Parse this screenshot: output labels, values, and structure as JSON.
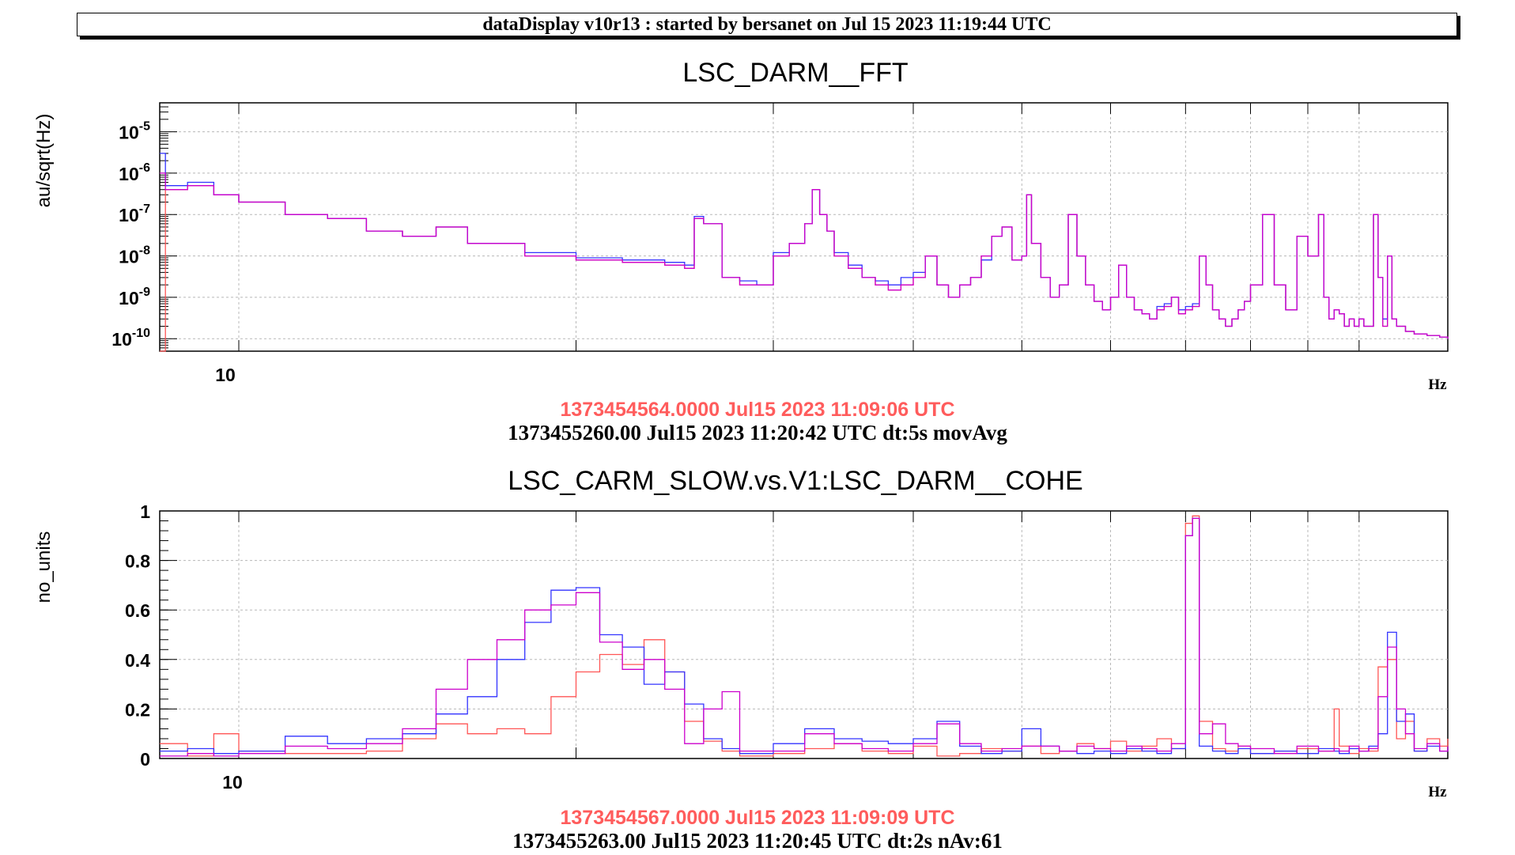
{
  "header": {
    "title": "dataDisplay v10r13 : started by bersanet on Jul 15 2023 11:19:44 UTC"
  },
  "colors": {
    "red": "#ff5555",
    "blue": "#3333ff",
    "magenta": "#cc00cc",
    "timestamp_red": "#ff5c5c",
    "grid": "#b8b8b8"
  },
  "chart_data": [
    {
      "type": "line",
      "title": "LSC_DARM__FFT",
      "ylabel": "au/sqrt(Hz)",
      "xlabel": "Hz",
      "x_scale": "log",
      "y_scale": "log",
      "xlim": [
        8.5,
        120
      ],
      "ylim": [
        5e-11,
        5e-05
      ],
      "x_tick_labels": [
        "10"
      ],
      "y_tick_labels": [
        {
          "base": "10",
          "exp": "-5"
        },
        {
          "base": "10",
          "exp": "-6"
        },
        {
          "base": "10",
          "exp": "-7"
        },
        {
          "base": "10",
          "exp": "-8"
        },
        {
          "base": "10",
          "exp": "-9"
        },
        {
          "base": "10",
          "exp": "-10"
        }
      ],
      "grid": true,
      "timestamps": [
        "1373454564.0000 Jul15 2023 11:09:06 UTC",
        "1373455260.00 Jul15 2023 11:20:42 UTC dt:5s movAvg"
      ],
      "series": [
        {
          "color": "#ff5555",
          "x": [
            8.5,
            8.6,
            9,
            9.5,
            10,
            11,
            12,
            13,
            14,
            15,
            16,
            18,
            20,
            22,
            24,
            25,
            25.5,
            26,
            27,
            28,
            29,
            30,
            31,
            32,
            32.5,
            33,
            33.5,
            34,
            35,
            36,
            37,
            38,
            39,
            40,
            41,
            42,
            43,
            44,
            45,
            46,
            47,
            48,
            49,
            50,
            50.5,
            51,
            52,
            53,
            54,
            55,
            56,
            57,
            58,
            59,
            60,
            61,
            62,
            63,
            64,
            65,
            66,
            67,
            68,
            69,
            70,
            71,
            72,
            73,
            74,
            75,
            76,
            77,
            78,
            79,
            80,
            82,
            84,
            86,
            88,
            90,
            92,
            93,
            94,
            95,
            96,
            97,
            98,
            99,
            100,
            101,
            102,
            103,
            104,
            105,
            106,
            107,
            108,
            110,
            112,
            115,
            118,
            120
          ],
          "y": [
            5e-11,
            4e-07,
            5e-07,
            3e-07,
            2e-07,
            1e-07,
            8e-08,
            4e-08,
            3e-08,
            5e-08,
            2e-08,
            1e-08,
            8e-09,
            7e-09,
            6e-09,
            5e-09,
            8e-08,
            6e-08,
            3e-09,
            2e-09,
            2e-09,
            1e-08,
            2e-08,
            6e-08,
            4e-07,
            1e-07,
            4e-08,
            1e-08,
            5e-09,
            3e-09,
            2e-09,
            1.5e-09,
            2e-09,
            3e-09,
            1e-08,
            2e-09,
            1e-09,
            2e-09,
            3e-09,
            1e-08,
            3e-08,
            5e-08,
            8e-09,
            1e-08,
            3e-07,
            2e-08,
            3e-09,
            1e-09,
            2e-09,
            1e-07,
            1e-08,
            2e-09,
            8e-10,
            5e-10,
            1e-09,
            6e-09,
            1e-09,
            5e-10,
            4e-10,
            3e-10,
            5e-10,
            6e-10,
            1e-09,
            4e-10,
            5e-10,
            6e-10,
            1e-08,
            2e-09,
            5e-10,
            3e-10,
            2e-10,
            3e-10,
            5e-10,
            8e-10,
            2e-09,
            1e-07,
            2e-09,
            5e-10,
            3e-08,
            1e-08,
            1e-07,
            1e-09,
            3e-10,
            5e-10,
            4e-10,
            2e-10,
            3e-10,
            2e-10,
            3e-10,
            2e-10,
            2e-10,
            1e-07,
            3e-09,
            2e-10,
            1e-08,
            3e-10,
            2e-10,
            1.5e-10,
            1.3e-10,
            1.2e-10,
            1.1e-10,
            1e-10
          ]
        },
        {
          "color": "#3333ff",
          "x": [
            8.5,
            8.6,
            9,
            9.5,
            10,
            11,
            12,
            13,
            14,
            15,
            16,
            18,
            20,
            22,
            24,
            25,
            25.5,
            26,
            27,
            28,
            29,
            30,
            31,
            32,
            32.5,
            33,
            33.5,
            34,
            35,
            36,
            37,
            38,
            39,
            40,
            41,
            42,
            43,
            44,
            45,
            46,
            47,
            48,
            49,
            50,
            50.5,
            51,
            52,
            53,
            54,
            55,
            56,
            57,
            58,
            59,
            60,
            61,
            62,
            63,
            64,
            65,
            66,
            67,
            68,
            69,
            70,
            71,
            72,
            73,
            74,
            75,
            76,
            77,
            78,
            79,
            80,
            82,
            84,
            86,
            88,
            90,
            92,
            93,
            94,
            95,
            96,
            97,
            98,
            99,
            100,
            101,
            102,
            103,
            104,
            105,
            106,
            107,
            108,
            110,
            112,
            115,
            118,
            120
          ],
          "y": [
            3e-06,
            5e-07,
            6e-07,
            3e-07,
            2e-07,
            1e-07,
            8e-08,
            4e-08,
            3e-08,
            5e-08,
            2e-08,
            1.2e-08,
            9e-09,
            8e-09,
            7e-09,
            6e-09,
            9e-08,
            6e-08,
            3e-09,
            2.5e-09,
            2e-09,
            1.2e-08,
            2e-08,
            6e-08,
            4e-07,
            1e-07,
            4e-08,
            1.2e-08,
            6e-09,
            3e-09,
            2.5e-09,
            2e-09,
            3e-09,
            4e-09,
            1e-08,
            2e-09,
            1e-09,
            2e-09,
            3e-09,
            8e-09,
            3e-08,
            5e-08,
            8e-09,
            1e-08,
            3e-07,
            2e-08,
            3e-09,
            1e-09,
            2e-09,
            1e-07,
            1e-08,
            2e-09,
            8e-10,
            5e-10,
            1e-09,
            6e-09,
            1e-09,
            5e-10,
            4e-10,
            3e-10,
            6e-10,
            7e-10,
            1e-09,
            5e-10,
            6e-10,
            7e-10,
            1e-08,
            2e-09,
            5e-10,
            3e-10,
            2e-10,
            3e-10,
            5e-10,
            8e-10,
            2e-09,
            1e-07,
            2e-09,
            5e-10,
            3e-08,
            1e-08,
            1e-07,
            1e-09,
            3e-10,
            5e-10,
            4e-10,
            2e-10,
            3e-10,
            2e-10,
            3e-10,
            2e-10,
            2e-10,
            1e-07,
            3e-09,
            3e-10,
            1e-08,
            3e-10,
            2e-10,
            1.5e-10,
            1.3e-10,
            1.2e-10,
            1.1e-10,
            1e-10
          ]
        },
        {
          "color": "#cc00cc",
          "x": [
            8.5,
            8.6,
            9,
            9.5,
            10,
            11,
            12,
            13,
            14,
            15,
            16,
            18,
            20,
            22,
            24,
            25,
            25.5,
            26,
            27,
            28,
            29,
            30,
            31,
            32,
            32.5,
            33,
            33.5,
            34,
            35,
            36,
            37,
            38,
            39,
            40,
            41,
            42,
            43,
            44,
            45,
            46,
            47,
            48,
            49,
            50,
            50.5,
            51,
            52,
            53,
            54,
            55,
            56,
            57,
            58,
            59,
            60,
            61,
            62,
            63,
            64,
            65,
            66,
            67,
            68,
            69,
            70,
            71,
            72,
            73,
            74,
            75,
            76,
            77,
            78,
            79,
            80,
            82,
            84,
            86,
            88,
            90,
            92,
            93,
            94,
            95,
            96,
            97,
            98,
            99,
            100,
            101,
            102,
            103,
            104,
            105,
            106,
            107,
            108,
            110,
            112,
            115,
            118,
            120
          ],
          "y": [
            1e-06,
            4e-07,
            5e-07,
            3e-07,
            2e-07,
            1e-07,
            8e-08,
            4e-08,
            3e-08,
            5e-08,
            2e-08,
            1e-08,
            8e-09,
            7e-09,
            6e-09,
            5e-09,
            8e-08,
            6e-08,
            3e-09,
            2e-09,
            2e-09,
            1e-08,
            2e-08,
            6e-08,
            4e-07,
            1e-07,
            4e-08,
            1e-08,
            5e-09,
            3e-09,
            2e-09,
            1.5e-09,
            2e-09,
            3e-09,
            1e-08,
            2e-09,
            1e-09,
            2e-09,
            3e-09,
            1e-08,
            3e-08,
            5e-08,
            8e-09,
            1e-08,
            3e-07,
            2e-08,
            3e-09,
            1e-09,
            2e-09,
            1e-07,
            1e-08,
            2e-09,
            8e-10,
            5e-10,
            1e-09,
            6e-09,
            1e-09,
            5e-10,
            4e-10,
            3e-10,
            5e-10,
            6e-10,
            1e-09,
            4e-10,
            5e-10,
            6e-10,
            1e-08,
            2e-09,
            5e-10,
            3e-10,
            2e-10,
            3e-10,
            5e-10,
            8e-10,
            2e-09,
            1e-07,
            2e-09,
            5e-10,
            3e-08,
            1e-08,
            1e-07,
            1e-09,
            3e-10,
            5e-10,
            4e-10,
            2e-10,
            3e-10,
            2e-10,
            3e-10,
            2e-10,
            2e-10,
            1e-07,
            3e-09,
            2e-10,
            1e-08,
            3e-10,
            2e-10,
            1.5e-10,
            1.3e-10,
            1.2e-10,
            1.1e-10,
            1e-10
          ]
        }
      ]
    },
    {
      "type": "line",
      "title": "LSC_CARM_SLOW.vs.V1:LSC_DARM__COHE",
      "ylabel": "no_units",
      "xlabel": "Hz",
      "x_scale": "log",
      "y_scale": "linear",
      "xlim": [
        8.5,
        120
      ],
      "ylim": [
        0,
        1
      ],
      "x_tick_labels": [
        "10"
      ],
      "y_tick_labels": [
        "1",
        "0.8",
        "0.6",
        "0.4",
        "0.2",
        "0"
      ],
      "grid": true,
      "timestamps": [
        "1373454567.0000 Jul15 2023 11:09:09 UTC",
        "1373455263.00 Jul15 2023 11:20:45 UTC dt:2s nAv:61"
      ],
      "series": [
        {
          "color": "#ff5555",
          "x": [
            8.5,
            9,
            9.5,
            10,
            11,
            12,
            13,
            14,
            15,
            16,
            17,
            18,
            19,
            20,
            21,
            22,
            23,
            24,
            25,
            26,
            27,
            28,
            30,
            32,
            34,
            36,
            38,
            40,
            42,
            44,
            46,
            48,
            50,
            52,
            54,
            56,
            58,
            60,
            62,
            64,
            66,
            68,
            70,
            71,
            72,
            74,
            76,
            78,
            80,
            84,
            88,
            92,
            95,
            96,
            98,
            100,
            102,
            104,
            106,
            108,
            110,
            112,
            115,
            118,
            120
          ],
          "y": [
            0.06,
            0.01,
            0.1,
            0.03,
            0.02,
            0.02,
            0.03,
            0.08,
            0.14,
            0.1,
            0.12,
            0.1,
            0.25,
            0.35,
            0.42,
            0.38,
            0.48,
            0.35,
            0.15,
            0.07,
            0.03,
            0.01,
            0.02,
            0.04,
            0.06,
            0.03,
            0.02,
            0.05,
            0.01,
            0.02,
            0.04,
            0.03,
            0.05,
            0.02,
            0.03,
            0.06,
            0.04,
            0.07,
            0.03,
            0.05,
            0.08,
            0.04,
            0.95,
            0.98,
            0.15,
            0.04,
            0.03,
            0.05,
            0.02,
            0.03,
            0.04,
            0.03,
            0.2,
            0.05,
            0.02,
            0.04,
            0.03,
            0.37,
            0.4,
            0.08,
            0.15,
            0.03,
            0.08,
            0.05,
            0.08
          ]
        },
        {
          "color": "#3333ff",
          "x": [
            8.5,
            9,
            9.5,
            10,
            11,
            12,
            13,
            14,
            15,
            16,
            17,
            18,
            19,
            20,
            21,
            22,
            23,
            24,
            25,
            26,
            27,
            28,
            30,
            32,
            34,
            36,
            38,
            40,
            42,
            44,
            46,
            48,
            50,
            52,
            54,
            56,
            58,
            60,
            62,
            64,
            66,
            68,
            70,
            71,
            72,
            74,
            76,
            78,
            80,
            84,
            88,
            92,
            95,
            96,
            98,
            100,
            102,
            104,
            106,
            108,
            110,
            112,
            115,
            118,
            120
          ],
          "y": [
            0.03,
            0.04,
            0.02,
            0.03,
            0.09,
            0.06,
            0.08,
            0.1,
            0.18,
            0.25,
            0.4,
            0.55,
            0.68,
            0.69,
            0.5,
            0.45,
            0.3,
            0.35,
            0.22,
            0.08,
            0.04,
            0.02,
            0.06,
            0.12,
            0.08,
            0.07,
            0.06,
            0.08,
            0.15,
            0.05,
            0.02,
            0.03,
            0.12,
            0.05,
            0.03,
            0.02,
            0.03,
            0.02,
            0.04,
            0.03,
            0.02,
            0.04,
            0.9,
            0.97,
            0.05,
            0.03,
            0.02,
            0.04,
            0.02,
            0.03,
            0.02,
            0.04,
            0.03,
            0.02,
            0.04,
            0.03,
            0.05,
            0.1,
            0.51,
            0.15,
            0.18,
            0.03,
            0.05,
            0.03,
            0.04
          ]
        },
        {
          "color": "#cc00cc",
          "x": [
            8.5,
            9,
            9.5,
            10,
            11,
            12,
            13,
            14,
            15,
            16,
            17,
            18,
            19,
            20,
            21,
            22,
            23,
            24,
            25,
            26,
            27,
            28,
            30,
            32,
            34,
            36,
            38,
            40,
            42,
            44,
            46,
            48,
            50,
            52,
            54,
            56,
            58,
            60,
            62,
            64,
            66,
            68,
            70,
            71,
            72,
            74,
            76,
            78,
            80,
            84,
            88,
            92,
            95,
            96,
            98,
            100,
            102,
            104,
            106,
            108,
            110,
            112,
            115,
            118,
            120
          ],
          "y": [
            0.01,
            0.02,
            0.01,
            0.02,
            0.05,
            0.04,
            0.06,
            0.12,
            0.28,
            0.4,
            0.48,
            0.6,
            0.62,
            0.67,
            0.47,
            0.36,
            0.4,
            0.28,
            0.06,
            0.2,
            0.27,
            0.03,
            0.03,
            0.1,
            0.06,
            0.04,
            0.03,
            0.06,
            0.14,
            0.06,
            0.03,
            0.04,
            0.05,
            0.05,
            0.03,
            0.05,
            0.04,
            0.03,
            0.05,
            0.04,
            0.03,
            0.06,
            0.9,
            0.97,
            0.1,
            0.14,
            0.06,
            0.05,
            0.04,
            0.02,
            0.05,
            0.03,
            0.04,
            0.03,
            0.05,
            0.03,
            0.04,
            0.25,
            0.45,
            0.2,
            0.1,
            0.04,
            0.06,
            0.03,
            0.05
          ]
        }
      ]
    }
  ]
}
